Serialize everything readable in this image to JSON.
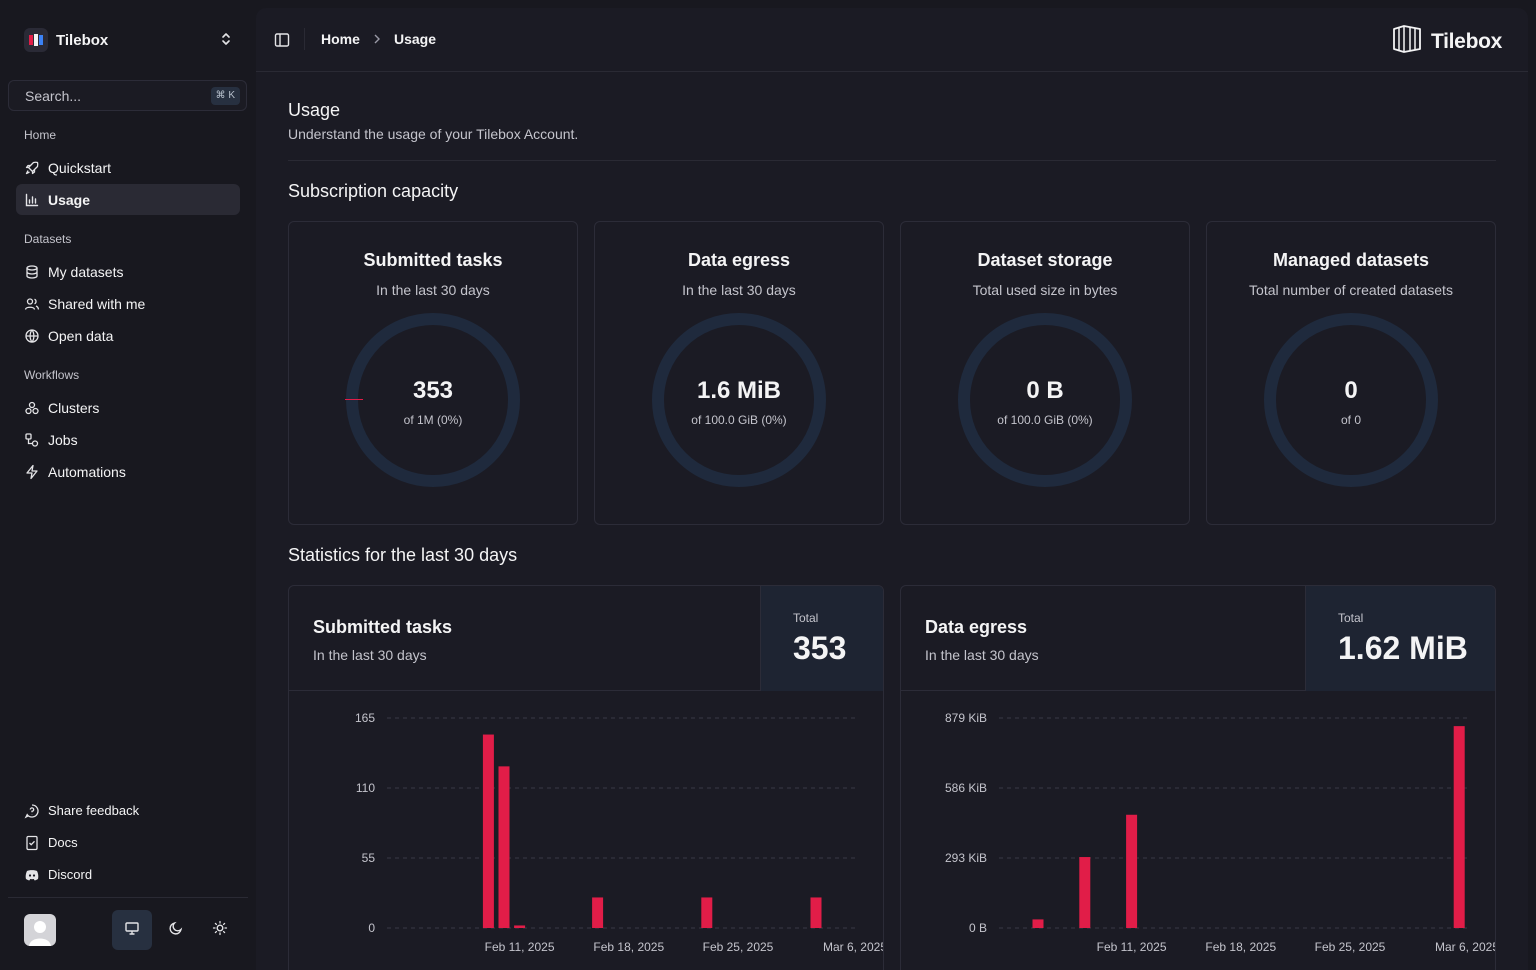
{
  "sidebar": {
    "org_name": "Tilebox",
    "search": {
      "placeholder": "Search...",
      "shortcut": "⌘ K"
    },
    "groups": [
      {
        "label": "Home",
        "items": [
          {
            "label": "Quickstart",
            "icon": "rocket-icon"
          },
          {
            "label": "Usage",
            "icon": "bar-chart-icon",
            "active": true
          }
        ]
      },
      {
        "label": "Datasets",
        "items": [
          {
            "label": "My datasets",
            "icon": "database-icon"
          },
          {
            "label": "Shared with me",
            "icon": "users-icon"
          },
          {
            "label": "Open data",
            "icon": "globe-icon"
          }
        ]
      },
      {
        "label": "Workflows",
        "items": [
          {
            "label": "Clusters",
            "icon": "cluster-icon"
          },
          {
            "label": "Jobs",
            "icon": "jobs-icon"
          },
          {
            "label": "Automations",
            "icon": "bolt-icon"
          }
        ]
      }
    ],
    "footer": [
      {
        "label": "Share feedback",
        "icon": "feedback-icon"
      },
      {
        "label": "Docs",
        "icon": "docs-icon"
      },
      {
        "label": "Discord",
        "icon": "discord-icon"
      }
    ],
    "theme": {
      "selected": "system"
    }
  },
  "topbar": {
    "breadcrumb": [
      "Home",
      "Usage"
    ],
    "brand": "Tilebox"
  },
  "page": {
    "title": "Usage",
    "subtitle": "Understand the usage of your Tilebox Account.",
    "capacity_title": "Subscription capacity",
    "stats_title": "Statistics for the last 30 days"
  },
  "capacity": [
    {
      "title": "Submitted tasks",
      "subtitle": "In the last 30 days",
      "value": "353",
      "of": "of 1M (0%)",
      "percent": 0.0353
    },
    {
      "title": "Data egress",
      "subtitle": "In the last 30 days",
      "value": "1.6 MiB",
      "of": "of 100.0 GiB (0%)",
      "percent": 0
    },
    {
      "title": "Dataset storage",
      "subtitle": "Total used size in bytes",
      "value": "0 B",
      "of": "of 100.0 GiB (0%)",
      "percent": 0
    },
    {
      "title": "Managed datasets",
      "subtitle": "Total number of created datasets",
      "value": "0",
      "of": "of 0",
      "percent": 0
    }
  ],
  "stats": [
    {
      "title": "Submitted tasks",
      "subtitle": "In the last 30 days",
      "total_label": "Total",
      "total": "353"
    },
    {
      "title": "Data egress",
      "subtitle": "In the last 30 days",
      "total_label": "Total",
      "total": "1.62 MiB"
    }
  ],
  "colors": {
    "accent": "#e11d48",
    "ring": "#1f2a3d"
  },
  "chart_data": [
    {
      "type": "bar",
      "title": "Submitted tasks",
      "ytick_labels": [
        "0",
        "55",
        "110",
        "165"
      ],
      "ylim": [
        0,
        165
      ],
      "xtick_labels": [
        "Feb 11, 2025",
        "Feb 18, 2025",
        "Feb 25, 2025",
        "Mar 6, 2025"
      ],
      "xtick_days": [
        8,
        15,
        22,
        29.5
      ],
      "x_days": [
        0,
        1,
        2,
        3,
        4,
        5,
        6,
        7,
        8,
        9,
        10,
        11,
        12,
        13,
        14,
        15,
        16,
        17,
        18,
        19,
        20,
        21,
        22,
        23,
        24,
        25,
        26,
        27,
        28,
        29
      ],
      "values": [
        0,
        0,
        0,
        0,
        0,
        0,
        152,
        127,
        2,
        0,
        0,
        0,
        0,
        24,
        0,
        0,
        0,
        0,
        0,
        0,
        24,
        0,
        0,
        0,
        0,
        0,
        0,
        24,
        0,
        0
      ]
    },
    {
      "type": "bar",
      "title": "Data egress",
      "ytick_labels": [
        "0 B",
        "293 KiB",
        "586 KiB",
        "879 KiB"
      ],
      "ylim": [
        0,
        879
      ],
      "y_unit": "KiB",
      "xtick_labels": [
        "Feb 11, 2025",
        "Feb 18, 2025",
        "Feb 25, 2025",
        "Mar 6, 2025"
      ],
      "xtick_days": [
        8,
        15,
        22,
        29.5
      ],
      "x_days": [
        0,
        1,
        2,
        3,
        4,
        5,
        6,
        7,
        8,
        9,
        10,
        11,
        12,
        13,
        14,
        15,
        16,
        17,
        18,
        19,
        20,
        21,
        22,
        23,
        24,
        25,
        26,
        27,
        28,
        29
      ],
      "values": [
        0,
        0,
        0,
        0,
        0,
        0,
        0,
        0,
        0,
        0,
        0,
        0,
        0,
        0,
        0,
        0,
        0,
        0,
        0,
        0,
        0,
        0,
        0,
        0,
        0,
        0,
        0,
        0,
        0,
        0
      ],
      "series_note_values": [
        0,
        0,
        36,
        0,
        0,
        297,
        0,
        0,
        474,
        0,
        0,
        0,
        0,
        0,
        0,
        0,
        0,
        0,
        0,
        0,
        0,
        0,
        0,
        0,
        0,
        0,
        0,
        0,
        0,
        845
      ]
    }
  ]
}
